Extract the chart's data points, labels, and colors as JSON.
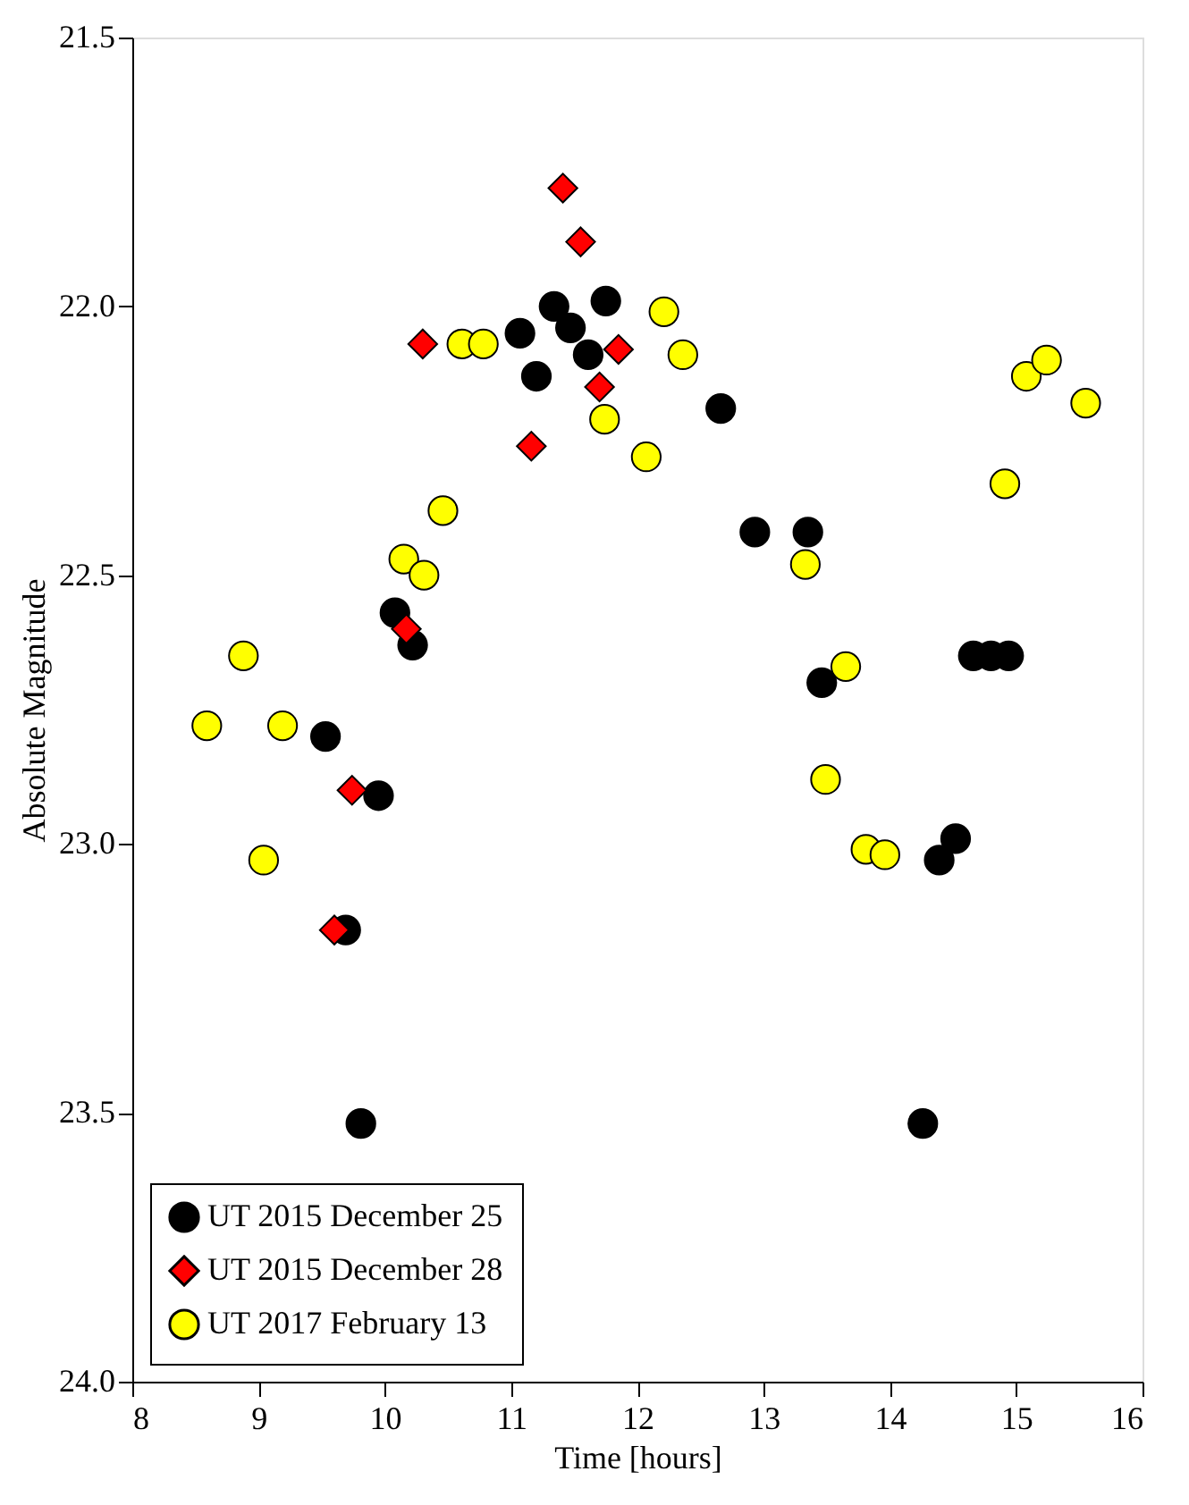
{
  "chart_data": {
    "type": "scatter",
    "xlabel": "Time [hours]",
    "ylabel": "Absolute Magnitude",
    "xlim": [
      8,
      16
    ],
    "xticks": [
      8,
      9,
      10,
      11,
      12,
      13,
      14,
      15,
      16
    ],
    "ylim": [
      24.0,
      21.5
    ],
    "yticks": [
      {
        "value": 21.5,
        "label": "21.5"
      },
      {
        "value": 22,
        "label": "22.0"
      },
      {
        "value": 22.5,
        "label": "22.5"
      },
      {
        "value": 23,
        "label": "23.0"
      },
      {
        "value": 23.5,
        "label": "23.5"
      },
      {
        "value": 24,
        "label": "24.0"
      }
    ],
    "grid": false,
    "legend": "bottom left",
    "series": [
      {
        "name": "UT 2015 December 25",
        "color": "#000000",
        "marker": "circle",
        "x": [
          9.53,
          9.95,
          9.69,
          9.81,
          10.08,
          10.22,
          11.07,
          11.2,
          11.34,
          11.47,
          11.61,
          11.75,
          12.66,
          12.93,
          13.35,
          13.46,
          14.26,
          14.39,
          14.52,
          14.66,
          14.8,
          14.94
        ],
        "values": [
          22.8,
          22.91,
          23.16,
          23.52,
          22.57,
          22.63,
          22.05,
          22.13,
          22.0,
          22.04,
          22.09,
          21.99,
          22.19,
          22.42,
          22.42,
          22.7,
          23.52,
          23.03,
          22.99,
          22.65,
          22.65,
          22.65
        ]
      },
      {
        "name": "UT 2015 December 28",
        "color": "#ff0000",
        "marker": "diamond",
        "x": [
          10.3,
          11.41,
          11.55,
          11.85,
          11.7,
          11.16,
          10.17,
          9.74,
          9.6
        ],
        "values": [
          22.07,
          21.78,
          21.88,
          22.08,
          22.15,
          22.26,
          22.6,
          22.9,
          23.16
        ]
      },
      {
        "name": "UT 2017 February 13",
        "color": "#ffff00",
        "marker": "circle",
        "x": [
          8.59,
          8.88,
          9.19,
          9.04,
          10.15,
          10.31,
          10.46,
          10.61,
          10.78,
          11.74,
          12.07,
          12.21,
          12.36,
          13.33,
          13.49,
          13.65,
          13.81,
          13.96,
          14.91,
          15.08,
          15.24,
          15.55
        ],
        "values": [
          22.78,
          22.65,
          22.78,
          23.03,
          22.47,
          22.5,
          22.38,
          22.07,
          22.07,
          22.21,
          22.28,
          22.01,
          22.09,
          22.48,
          22.88,
          22.67,
          23.01,
          23.02,
          22.33,
          22.13,
          22.1,
          22.18
        ]
      }
    ]
  }
}
